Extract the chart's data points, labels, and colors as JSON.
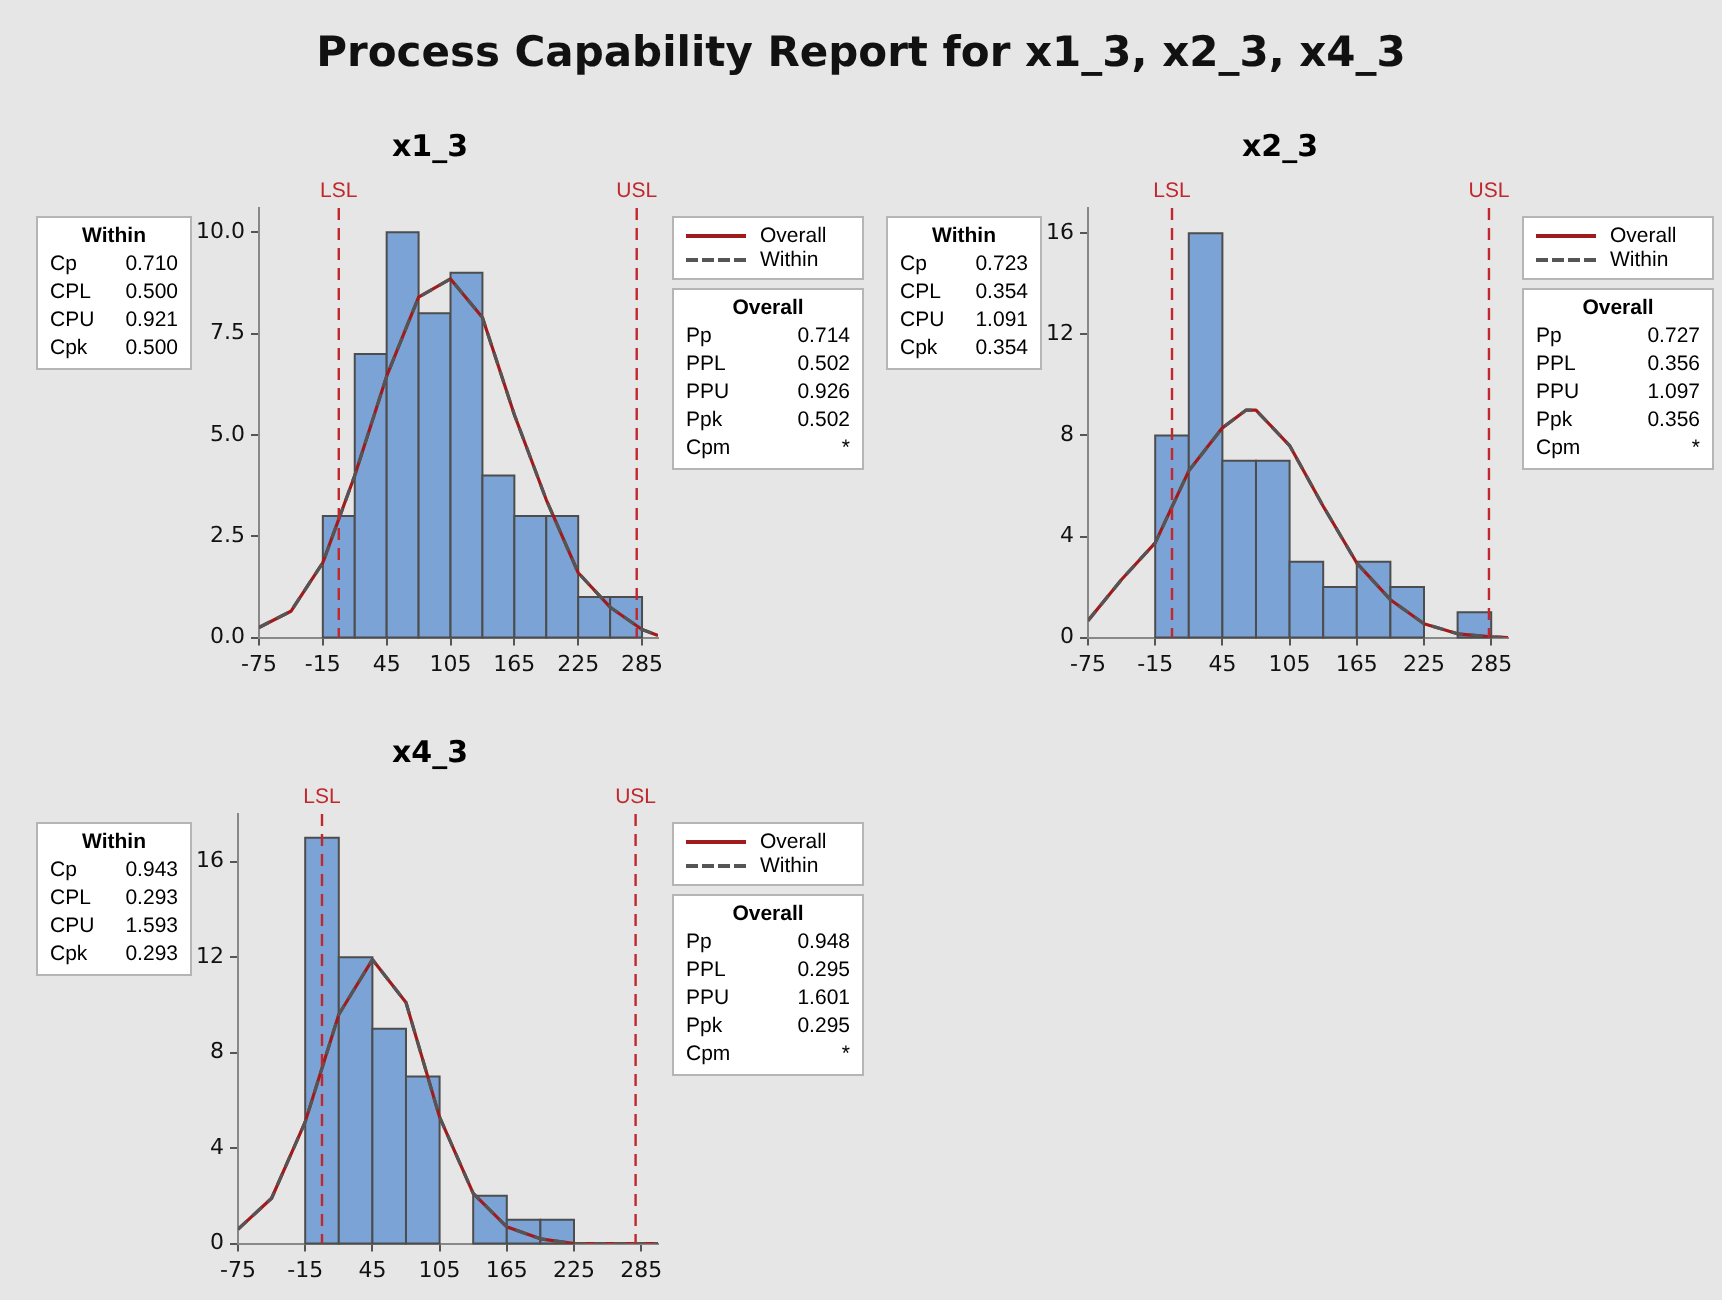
{
  "chart_data": [
    {
      "type": "histogram",
      "title": "Process Capability Report for x1_3, x2_3, x4_3",
      "subtitle": "x1_3",
      "color": "#7ba3d6",
      "bins": [
        -15,
        15,
        45,
        75,
        105,
        135,
        165,
        195,
        225,
        255,
        285
      ],
      "values": [
        3,
        7,
        10,
        8,
        9,
        4,
        3,
        3,
        1,
        1
      ],
      "series": [
        {
          "type": "line",
          "name": "Overall",
          "color": "#a01c1c",
          "line_style": "solid",
          "x": [
            -75,
            -45,
            -15,
            15,
            45,
            75,
            105,
            135,
            165,
            195,
            225,
            255,
            285,
            300
          ],
          "values": [
            0.25,
            0.65,
            1.85,
            4.0,
            6.45,
            8.4,
            8.85,
            7.9,
            5.5,
            3.4,
            1.6,
            0.75,
            0.2,
            0.05
          ]
        },
        {
          "type": "line",
          "name": "Within",
          "color": "#555555",
          "line_style": "dashed",
          "x": [
            -75,
            -45,
            -15,
            15,
            45,
            75,
            105,
            135,
            165,
            195,
            225,
            255,
            285,
            300
          ],
          "values": [
            0.25,
            0.65,
            1.85,
            4.0,
            6.45,
            8.4,
            8.85,
            7.9,
            5.5,
            3.4,
            1.6,
            0.75,
            0.2,
            0.05
          ]
        }
      ],
      "xlim": [
        -75,
        300
      ],
      "xticks": [
        -75,
        -15,
        45,
        105,
        165,
        225,
        285
      ],
      "ylim": [
        0,
        10.6
      ],
      "yticks": [
        {
          "value": 0,
          "label": "0.0"
        },
        {
          "value": 2.5,
          "label": "2.5"
        },
        {
          "value": 5,
          "label": "5.0"
        },
        {
          "value": 7.5,
          "label": "7.5"
        },
        {
          "value": 10,
          "label": "10.0"
        }
      ],
      "ref_lines": [
        {
          "axis": "x",
          "value": 0,
          "label": "LSL",
          "color": "#c0282d",
          "line_style": "dashed"
        },
        {
          "axis": "x",
          "value": 280,
          "label": "USL",
          "color": "#c0282d",
          "line_style": "dashed"
        }
      ],
      "legend": "right",
      "marker": "none",
      "annotations": [
        "Within\nCp 0.710\nCPL 0.500\nCPU 0.921\nCpk 0.500",
        "Overall\nPp 0.714\nPPL 0.502\nPPU 0.926\nPpk 0.502\nCpm *"
      ]
    },
    {
      "type": "histogram",
      "subtitle": "x2_3",
      "color": "#7ba3d6",
      "bins": [
        -15,
        15,
        45,
        75,
        105,
        135,
        165,
        195,
        225,
        255,
        285
      ],
      "values": [
        8,
        16,
        7,
        7,
        3,
        2,
        3,
        2,
        0,
        1
      ],
      "series": [
        {
          "type": "line",
          "name": "Overall",
          "color": "#a01c1c",
          "line_style": "solid",
          "x": [
            -75,
            -45,
            -15,
            15,
            45,
            66,
            75,
            105,
            135,
            165,
            195,
            225,
            255,
            285,
            300
          ],
          "values": [
            0.67,
            2.3,
            3.75,
            6.6,
            8.3,
            9.0,
            9.0,
            7.6,
            5.2,
            2.95,
            1.5,
            0.55,
            0.15,
            0.03,
            0
          ]
        },
        {
          "type": "line",
          "name": "Within",
          "color": "#555555",
          "line_style": "dashed",
          "x": [
            -75,
            -45,
            -15,
            15,
            45,
            66,
            75,
            105,
            135,
            165,
            195,
            225,
            255,
            285,
            300
          ],
          "values": [
            0.67,
            2.3,
            3.75,
            6.6,
            8.3,
            9.0,
            9.0,
            7.6,
            5.2,
            2.95,
            1.5,
            0.55,
            0.15,
            0.03,
            0
          ]
        }
      ],
      "xlim": [
        -75,
        300
      ],
      "xticks": [
        -75,
        -15,
        45,
        105,
        165,
        225,
        285
      ],
      "ylim": [
        0,
        17
      ],
      "yticks": [
        0,
        4,
        8,
        12,
        16
      ],
      "ref_lines": [
        {
          "axis": "x",
          "value": 0,
          "label": "LSL",
          "color": "#c0282d",
          "line_style": "dashed"
        },
        {
          "axis": "x",
          "value": 283,
          "label": "USL",
          "color": "#c0282d",
          "line_style": "dashed"
        }
      ],
      "legend": "right",
      "marker": "none",
      "annotations": [
        "Within\nCp 0.723\nCPL 0.354\nCPU 1.091\nCpk 0.354",
        "Overall\nPp 0.727\nPPL 0.356\nPPU 1.097\nPpk 0.356\nCpm *"
      ]
    },
    {
      "type": "histogram",
      "subtitle": "x4_3",
      "color": "#7ba3d6",
      "bins": [
        -15,
        15,
        45,
        75,
        105,
        135,
        165,
        195,
        225
      ],
      "values": [
        17,
        12,
        9,
        7,
        0,
        2,
        1,
        1
      ],
      "series": [
        {
          "type": "line",
          "name": "Overall",
          "color": "#a01c1c",
          "line_style": "solid",
          "x": [
            -75,
            -45,
            -15,
            15,
            45,
            75,
            105,
            135,
            165,
            195,
            225,
            255,
            300
          ],
          "values": [
            0.6,
            1.9,
            5.1,
            9.6,
            11.9,
            10.1,
            5.3,
            2.1,
            0.7,
            0.2,
            0,
            0,
            0
          ]
        },
        {
          "type": "line",
          "name": "Within",
          "color": "#555555",
          "line_style": "dashed",
          "x": [
            -75,
            -45,
            -15,
            15,
            45,
            75,
            105,
            135,
            165,
            195,
            225,
            255,
            300
          ],
          "values": [
            0.6,
            1.9,
            5.1,
            9.6,
            11.9,
            10.1,
            5.3,
            2.1,
            0.7,
            0.2,
            0,
            0,
            0
          ]
        }
      ],
      "xlim": [
        -75,
        300
      ],
      "xticks": [
        -75,
        -15,
        45,
        105,
        165,
        225,
        285
      ],
      "ylim": [
        0,
        18
      ],
      "yticks": [
        0,
        4,
        8,
        12,
        16
      ],
      "ref_lines": [
        {
          "axis": "x",
          "value": 0,
          "label": "LSL",
          "color": "#c0282d",
          "line_style": "dashed"
        },
        {
          "axis": "x",
          "value": 280,
          "label": "USL",
          "color": "#c0282d",
          "line_style": "dashed"
        }
      ],
      "legend": "right",
      "marker": "none",
      "annotations": [
        "Within\nCp 0.943\nCPL 0.293\nCPU 1.593\nCpk 0.293",
        "Overall\nPp 0.948\nPPL 0.295\nPPU 1.601\nPpk 0.295\nCpm *"
      ]
    }
  ]
}
